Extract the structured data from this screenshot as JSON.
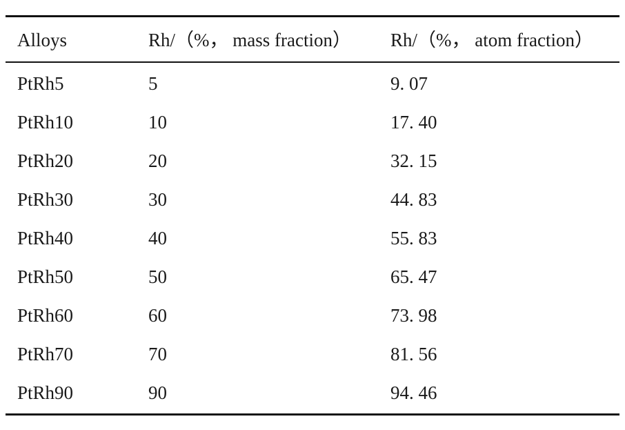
{
  "table": {
    "headers": [
      "Alloys",
      "Rh/（%， mass fraction）",
      "Rh/（%， atom fraction）"
    ],
    "rows": [
      {
        "alloy": "PtRh5",
        "mass": "5",
        "atom": "9. 07"
      },
      {
        "alloy": "PtRh10",
        "mass": "10",
        "atom": "17. 40"
      },
      {
        "alloy": "PtRh20",
        "mass": "20",
        "atom": "32. 15"
      },
      {
        "alloy": "PtRh30",
        "mass": "30",
        "atom": "44. 83"
      },
      {
        "alloy": "PtRh40",
        "mass": "40",
        "atom": "55. 83"
      },
      {
        "alloy": "PtRh50",
        "mass": "50",
        "atom": "65. 47"
      },
      {
        "alloy": "PtRh60",
        "mass": "60",
        "atom": "73. 98"
      },
      {
        "alloy": "PtRh70",
        "mass": "70",
        "atom": "81. 56"
      },
      {
        "alloy": "PtRh90",
        "mass": "90",
        "atom": "94. 46"
      }
    ]
  }
}
